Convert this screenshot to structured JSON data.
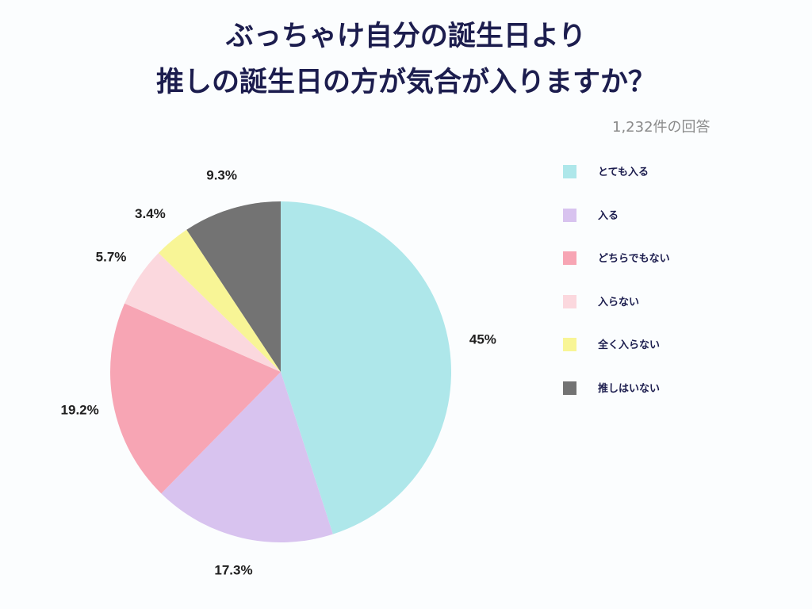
{
  "header": {
    "title_line1": "ぶっちゃけ自分の誕生日より",
    "title_line2": "推しの誕生日の方が気合が入りますか？",
    "response_count": "1,232件の回答"
  },
  "chart_data": {
    "type": "pie",
    "title": "ぶっちゃけ自分の誕生日より推しの誕生日の方が気合が入りますか？",
    "start_angle_deg": 0,
    "direction": "clockwise",
    "legend_position": "right",
    "slices": [
      {
        "label": "とても入る",
        "value": 45,
        "display": "45%",
        "color": "#aee7ea"
      },
      {
        "label": "入る",
        "value": 17.3,
        "display": "17.3%",
        "color": "#d8c3ef"
      },
      {
        "label": "どちらでもない",
        "value": 19.2,
        "display": "19.2%",
        "color": "#f7a5b4"
      },
      {
        "label": "入らない",
        "value": 5.7,
        "display": "5.7%",
        "color": "#fbd8de"
      },
      {
        "label": "全く入らない",
        "value": 3.4,
        "display": "3.4%",
        "color": "#f8f596"
      },
      {
        "label": "推しはいない",
        "value": 9.3,
        "display": "9.3%",
        "color": "#737373"
      }
    ]
  }
}
